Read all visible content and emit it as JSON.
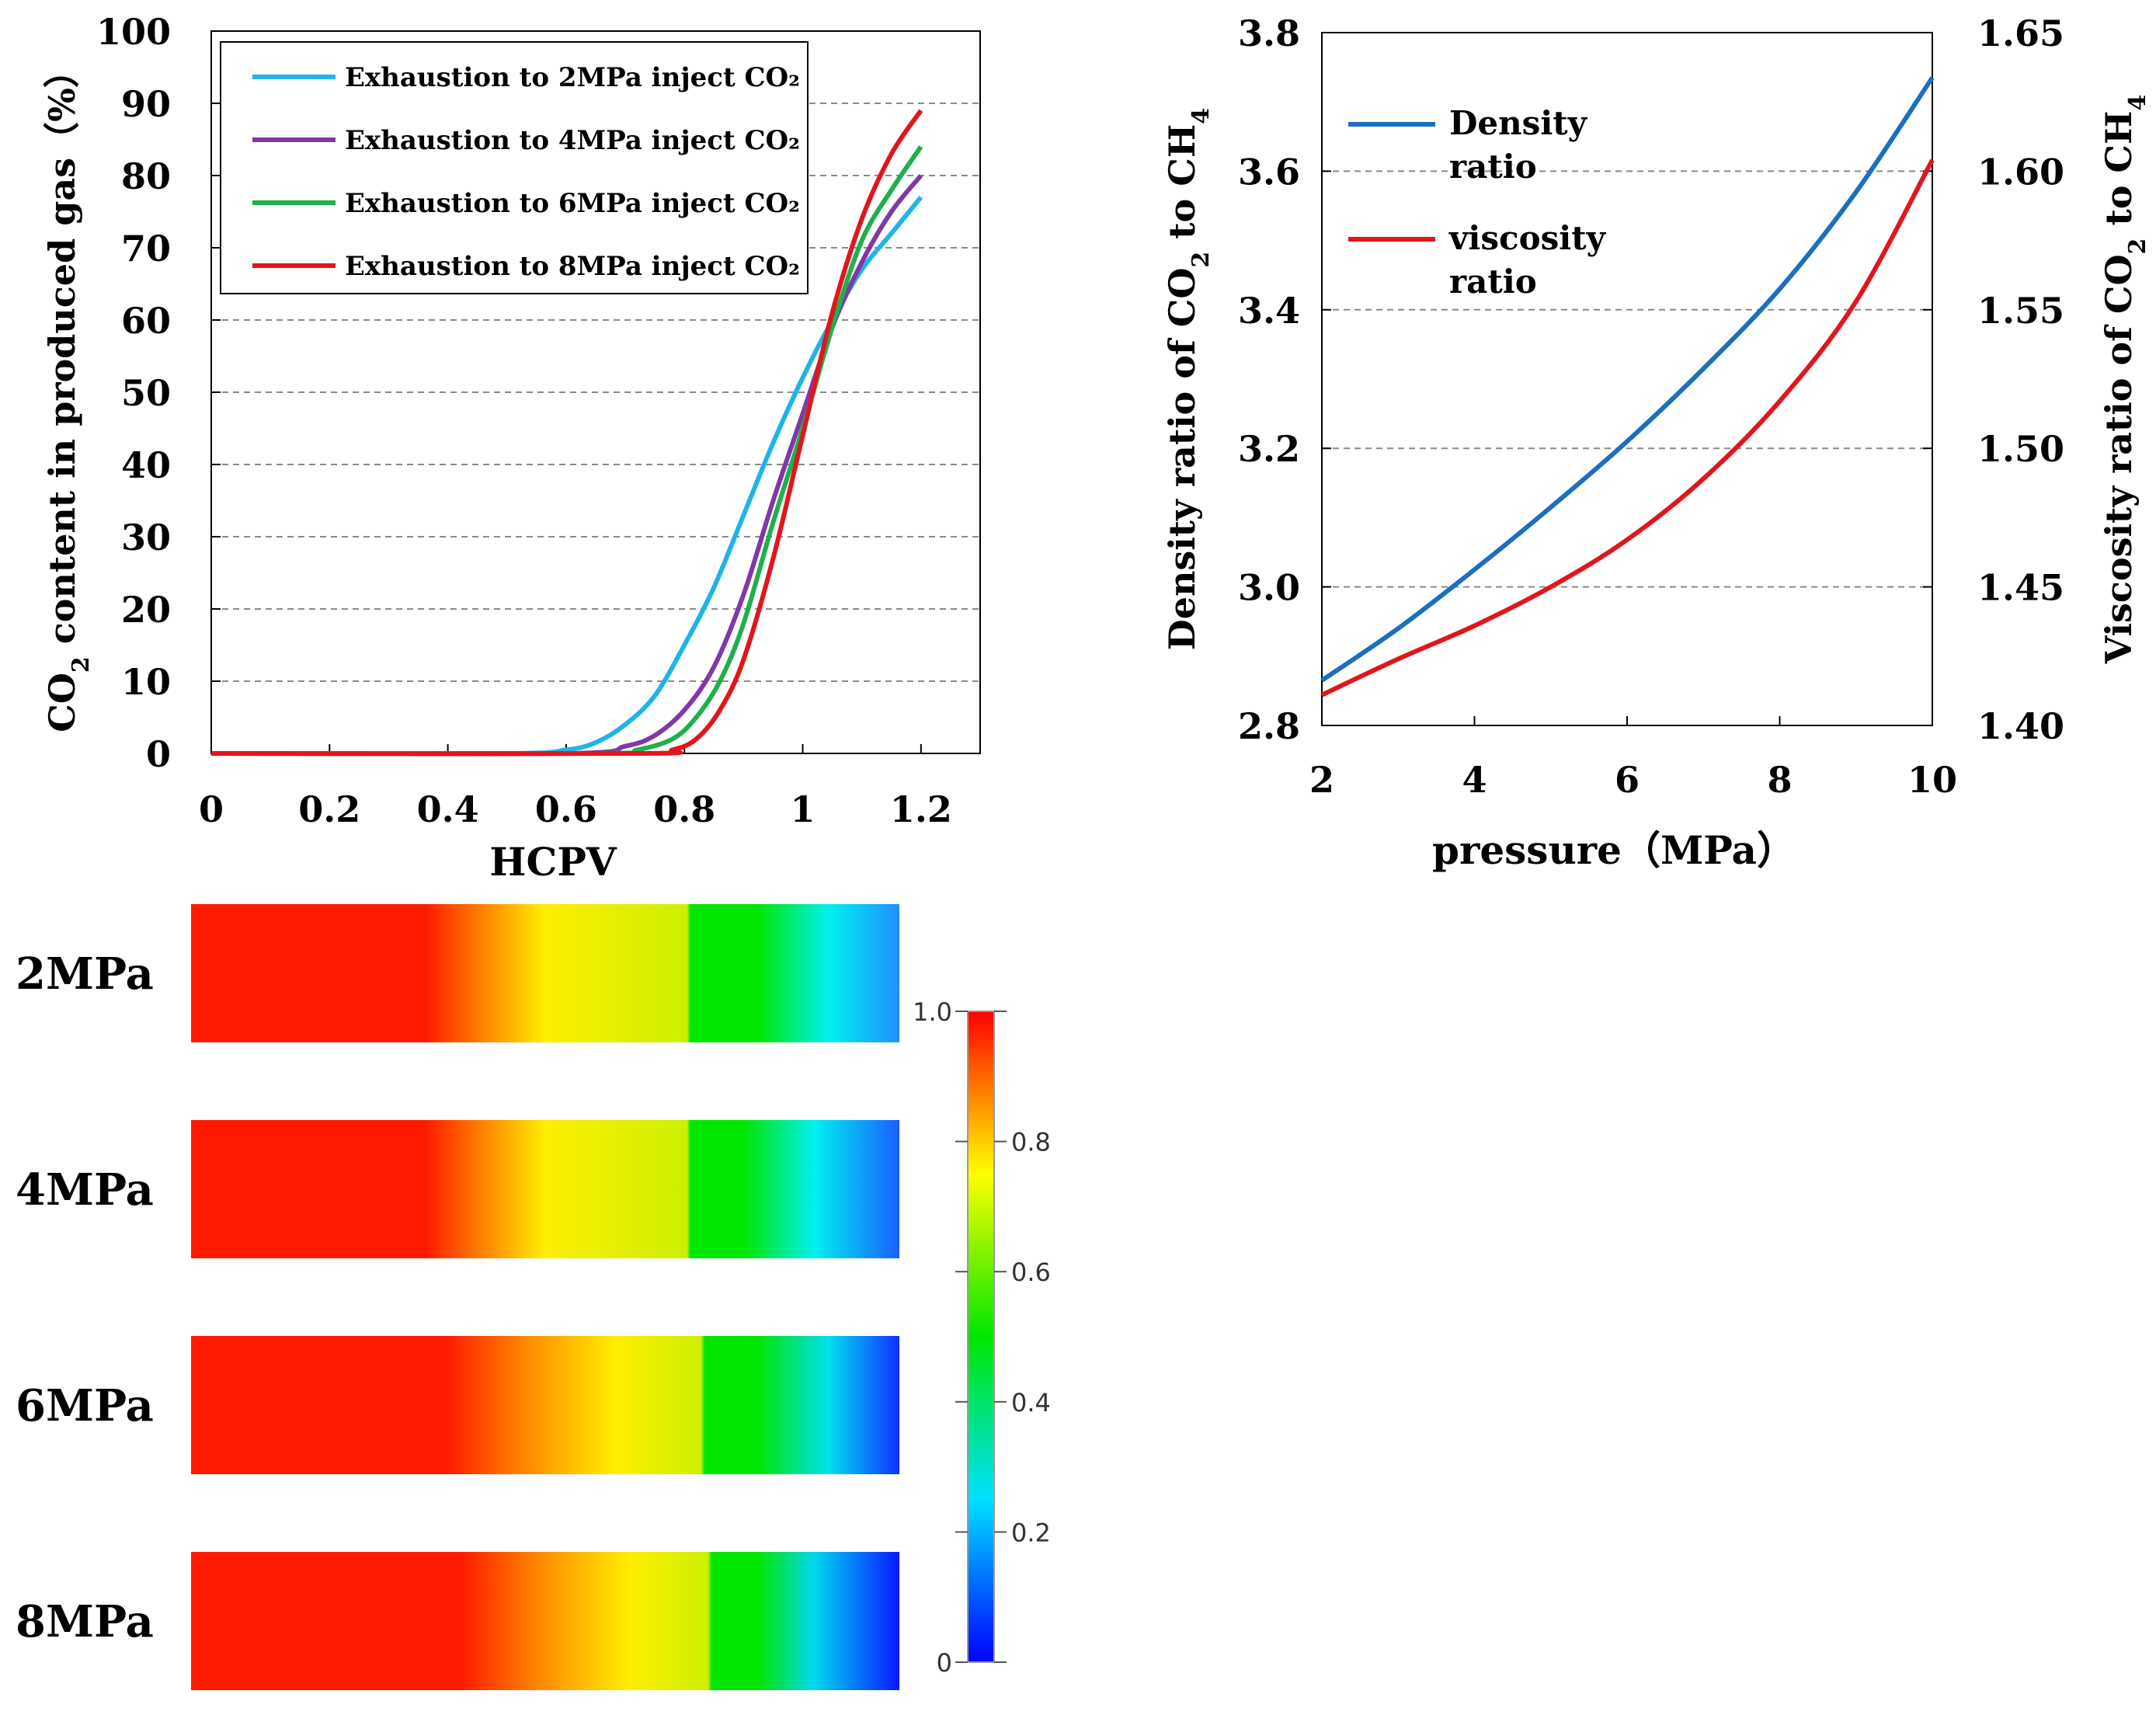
{
  "chart_data": [
    {
      "type": "line",
      "id": "co2-content",
      "xlabel": "HCPV",
      "ylabel_prefix": "CO",
      "ylabel_sub": "2",
      "ylabel_suffix": " content in produced gas（%）",
      "xlim": [
        0,
        1.3
      ],
      "ylim": [
        0,
        100
      ],
      "xticks": [
        "0",
        "0.2",
        "0.4",
        "0.6",
        "0.8",
        "1",
        "1.2"
      ],
      "yticks": [
        "0",
        "10",
        "20",
        "30",
        "40",
        "50",
        "60",
        "70",
        "80",
        "90",
        "100"
      ],
      "legend_position": "top-left",
      "series": [
        {
          "name": "Exhaustion to 2MPa inject CO₂",
          "color": "#1eb4e8",
          "x": [
            0,
            0.5,
            0.6,
            0.65,
            0.7,
            0.75,
            0.8,
            0.85,
            0.9,
            0.95,
            1.0,
            1.05,
            1.1,
            1.15,
            1.2
          ],
          "y": [
            0,
            0,
            0.5,
            1.5,
            4,
            8,
            15,
            23,
            33,
            43,
            52,
            60,
            67,
            72,
            77
          ]
        },
        {
          "name": "Exhaustion to 4MPa inject CO₂",
          "color": "#8038a8",
          "x": [
            0,
            0.6,
            0.7,
            0.75,
            0.8,
            0.85,
            0.9,
            0.95,
            1.0,
            1.05,
            1.1,
            1.15,
            1.2
          ],
          "y": [
            0,
            0,
            1,
            2.5,
            6,
            12,
            22,
            35,
            47,
            59,
            68,
            75,
            80
          ]
        },
        {
          "name": "Exhaustion to 6MPa inject CO₂",
          "color": "#1fb04a",
          "x": [
            0,
            0.65,
            0.72,
            0.78,
            0.82,
            0.86,
            0.9,
            0.95,
            1.0,
            1.05,
            1.1,
            1.15,
            1.2
          ],
          "y": [
            0,
            0,
            0.5,
            2,
            5,
            10,
            18,
            32,
            45,
            59,
            71,
            78,
            84
          ]
        },
        {
          "name": "Exhaustion to 8MPa inject CO₂",
          "color": "#e0161c",
          "x": [
            0,
            0.72,
            0.78,
            0.82,
            0.86,
            0.9,
            0.95,
            1.0,
            1.05,
            1.1,
            1.15,
            1.2
          ],
          "y": [
            0,
            0,
            0.5,
            2,
            6,
            13,
            27,
            44,
            61,
            74,
            83,
            89
          ]
        }
      ]
    },
    {
      "type": "line",
      "id": "ratio-vs-pressure",
      "xlabel": "pressure（MPa）",
      "ylabel_left": "Density ratio of CO",
      "ylabel_left_sub": "2",
      "ylabel_left_mid": " to CH",
      "ylabel_left_sub2": "4",
      "ylabel_right": "Viscosity  ratio of CO",
      "ylabel_right_sub": "2",
      "ylabel_right_mid": " to CH",
      "ylabel_right_sub2": "4",
      "xlim": [
        2,
        10
      ],
      "ylim_left": [
        2.8,
        3.8
      ],
      "ylim_right": [
        1.4,
        1.65
      ],
      "xticks": [
        "2",
        "4",
        "6",
        "8",
        "10"
      ],
      "yticks_left": [
        "2.8",
        "3.0",
        "3.2",
        "3.4",
        "3.6",
        "3.8"
      ],
      "yticks_right": [
        "1.40",
        "1.45",
        "1.50",
        "1.55",
        "1.60",
        "1.65"
      ],
      "legend_position": "top-left",
      "series": [
        {
          "name_line1": "Density",
          "name_line2": "ratio",
          "axis": "left",
          "color": "#1a6fc0",
          "x": [
            2,
            3,
            4,
            5,
            6,
            7,
            8,
            9,
            10
          ],
          "y": [
            2.865,
            2.94,
            3.025,
            3.115,
            3.21,
            3.315,
            3.43,
            3.57,
            3.735
          ]
        },
        {
          "name_line1": "viscosity",
          "name_line2": "ratio",
          "axis": "right",
          "color": "#e0161c",
          "x": [
            2,
            3,
            4,
            5,
            6,
            7,
            8,
            9,
            10
          ],
          "y": [
            1.411,
            1.424,
            1.436,
            1.45,
            1.467,
            1.489,
            1.517,
            1.553,
            1.604
          ]
        }
      ]
    },
    {
      "type": "heatmap",
      "id": "co2-saturation-profiles",
      "rows": [
        {
          "label": "2MPa",
          "stops": [
            [
              0,
              "#ff1a00"
            ],
            [
              0.33,
              "#ff1a00"
            ],
            [
              0.42,
              "#ff8c00"
            ],
            [
              0.5,
              "#ffee00"
            ],
            [
              0.7,
              "#ccf000"
            ],
            [
              0.705,
              "#00e600"
            ],
            [
              0.8,
              "#00e600"
            ],
            [
              0.9,
              "#00f0f0"
            ],
            [
              1.0,
              "#1e90ff"
            ]
          ]
        },
        {
          "label": "4MPa",
          "stops": [
            [
              0,
              "#ff1a00"
            ],
            [
              0.33,
              "#ff1a00"
            ],
            [
              0.42,
              "#ff8c00"
            ],
            [
              0.5,
              "#ffee00"
            ],
            [
              0.7,
              "#ccf000"
            ],
            [
              0.705,
              "#00e600"
            ],
            [
              0.78,
              "#00e600"
            ],
            [
              0.88,
              "#00f0f0"
            ],
            [
              1.0,
              "#1860ff"
            ]
          ]
        },
        {
          "label": "6MPa",
          "stops": [
            [
              0,
              "#ff1a00"
            ],
            [
              0.36,
              "#ff1a00"
            ],
            [
              0.48,
              "#ff9000"
            ],
            [
              0.6,
              "#ffee00"
            ],
            [
              0.72,
              "#ccf000"
            ],
            [
              0.725,
              "#00e600"
            ],
            [
              0.8,
              "#00e600"
            ],
            [
              0.9,
              "#00e0f0"
            ],
            [
              1.0,
              "#1030ff"
            ]
          ]
        },
        {
          "label": "8MPa",
          "stops": [
            [
              0,
              "#ff1a00"
            ],
            [
              0.38,
              "#ff1a00"
            ],
            [
              0.5,
              "#ff9000"
            ],
            [
              0.62,
              "#ffee00"
            ],
            [
              0.73,
              "#ccf000"
            ],
            [
              0.735,
              "#00e600"
            ],
            [
              0.8,
              "#00e600"
            ],
            [
              0.88,
              "#00d8f0"
            ],
            [
              1.0,
              "#0818ff"
            ]
          ]
        }
      ],
      "colorbar": {
        "ticks": [
          "0",
          "0.2",
          "0.4",
          "0.6",
          "0.8",
          "1.0"
        ],
        "range": [
          0,
          1.0
        ],
        "stops": [
          [
            0,
            "#0000ff"
          ],
          [
            0.25,
            "#00e0ff"
          ],
          [
            0.5,
            "#00e600"
          ],
          [
            0.75,
            "#ffff00"
          ],
          [
            0.875,
            "#ff8000"
          ],
          [
            1.0,
            "#ff0000"
          ]
        ]
      }
    }
  ]
}
